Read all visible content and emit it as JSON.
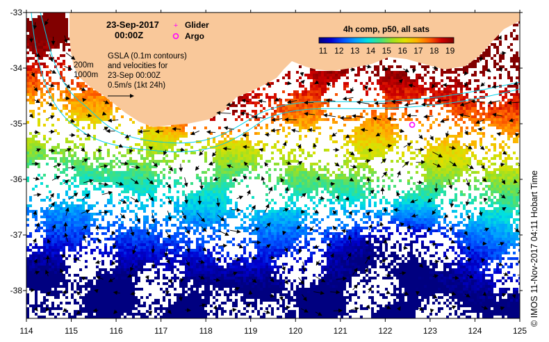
{
  "title": {
    "date": "23-Sep-2017",
    "time": "00:00Z"
  },
  "legend": {
    "glider_label": "Glider",
    "argo_label": "Argo",
    "glider_color": "#ff00ff",
    "argo_color": "#ff00ff"
  },
  "description": {
    "line1": "GSLA (0.1m contours)",
    "line2": "and velocities for",
    "line3": "23-Sep 00:00Z",
    "line4": "0.5m/s (1kt 24h)"
  },
  "depth_labels": {
    "d200": "200m",
    "d1000": "1000m",
    "d200_color": "#00d0e8",
    "d1000_color": "#00d0e8"
  },
  "colorbar": {
    "title": "4h comp, p50, all sats",
    "ticks": [
      "11",
      "12",
      "13",
      "14",
      "15",
      "16",
      "17",
      "18",
      "19"
    ],
    "min": 11,
    "max": 19.5,
    "colors": [
      "#000080",
      "#0000d0",
      "#0050ff",
      "#00a0ff",
      "#00e0e0",
      "#40e080",
      "#a0e020",
      "#e0e000",
      "#ffb000",
      "#ff6000",
      "#d00000",
      "#800000"
    ]
  },
  "axes": {
    "lon_ticks": [
      "114",
      "115",
      "116",
      "117",
      "118",
      "119",
      "120",
      "121",
      "122",
      "123",
      "124",
      "125"
    ],
    "lat_ticks": [
      "-33",
      "-34",
      "-35",
      "-36",
      "-37",
      "-38"
    ],
    "lon_range": [
      114,
      125
    ],
    "lat_range": [
      -38.5,
      -33
    ]
  },
  "land_color": "#f9c89a",
  "argo_float": {
    "lon": 122.6,
    "lat": -35.02
  },
  "credit": "© IMOS 11-Nov-2017 04:11 Hobart Time"
}
